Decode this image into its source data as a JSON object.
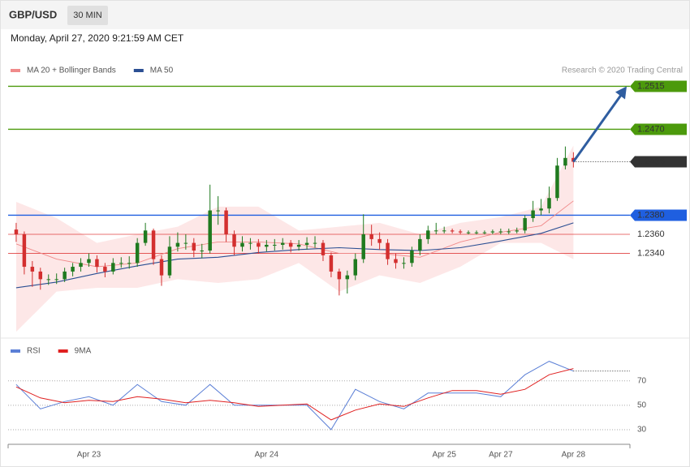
{
  "header": {
    "symbol": "GBP/USD",
    "timeframe": "30 MIN",
    "date": "Monday, April 27, 2020 9:21:59 AM CET"
  },
  "chart_data": [
    {
      "type": "candlestick",
      "credit": "Research © 2020 Trading Central",
      "xlim": [
        -1,
        76
      ],
      "ylim": [
        1.2253,
        1.2529
      ],
      "up_color": "#1f7a1f",
      "down_color": "#d32f2f",
      "open": [
        1.2365,
        1.236,
        1.2326,
        1.2321,
        1.2313,
        1.2313,
        1.2313,
        1.2321,
        1.2326,
        1.233,
        1.2334,
        1.2326,
        1.2321,
        1.233,
        1.233,
        1.233,
        1.2351,
        1.2364,
        1.2334,
        1.2317,
        1.2347,
        1.2351,
        1.2351,
        1.2343,
        1.2343,
        1.2385,
        1.2385,
        1.236,
        1.2347,
        1.2351,
        1.2351,
        1.2347,
        1.2349,
        1.2349,
        1.2351,
        1.2347,
        1.2349,
        1.2351,
        1.2351,
        1.2338,
        1.2321,
        1.2313,
        1.2317,
        1.2334,
        1.236,
        1.2355,
        1.2351,
        1.2334,
        1.233,
        1.233,
        1.2343,
        1.2355,
        1.2364,
        1.2364,
        1.2364,
        1.2363,
        1.2362,
        1.2362,
        1.2362,
        1.2362,
        1.2363,
        1.2363,
        1.2363,
        1.2364,
        1.2377,
        1.2385,
        1.2387,
        1.2398,
        1.2432,
        1.244
      ],
      "high": [
        1.2372,
        1.2363,
        1.2332,
        1.2325,
        1.2318,
        1.2319,
        1.2325,
        1.233,
        1.2335,
        1.234,
        1.2338,
        1.233,
        1.2335,
        1.2336,
        1.2337,
        1.2356,
        1.2372,
        1.2366,
        1.2338,
        1.2358,
        1.2362,
        1.236,
        1.2356,
        1.235,
        1.2412,
        1.24,
        1.2388,
        1.2364,
        1.2358,
        1.2356,
        1.2355,
        1.2354,
        1.2355,
        1.2356,
        1.2354,
        1.2354,
        1.2357,
        1.2358,
        1.2354,
        1.2341,
        1.2324,
        1.2322,
        1.234,
        1.2381,
        1.237,
        1.2362,
        1.2355,
        1.234,
        1.2336,
        1.2347,
        1.236,
        1.2369,
        1.2372,
        1.2368,
        1.2366,
        1.2365,
        1.2364,
        1.2364,
        1.2364,
        1.2365,
        1.2366,
        1.2366,
        1.2367,
        1.238,
        1.2395,
        1.2397,
        1.241,
        1.244,
        1.2452,
        1.2446
      ],
      "low": [
        1.2352,
        1.2318,
        1.2305,
        1.2302,
        1.2307,
        1.2308,
        1.231,
        1.2316,
        1.2321,
        1.2326,
        1.232,
        1.2315,
        1.2318,
        1.2325,
        1.2324,
        1.2326,
        1.2348,
        1.2328,
        1.2306,
        1.2314,
        1.2342,
        1.2344,
        1.2336,
        1.2335,
        1.234,
        1.237,
        1.2352,
        1.2338,
        1.2342,
        1.2344,
        1.234,
        1.2342,
        1.2343,
        1.2344,
        1.2341,
        1.2343,
        1.2344,
        1.2346,
        1.2332,
        1.2315,
        1.2296,
        1.2298,
        1.2312,
        1.233,
        1.2348,
        1.2344,
        1.2328,
        1.2324,
        1.2324,
        1.2326,
        1.2338,
        1.235,
        1.236,
        1.2361,
        1.2361,
        1.236,
        1.236,
        1.236,
        1.236,
        1.236,
        1.236,
        1.236,
        1.2361,
        1.2361,
        1.2373,
        1.238,
        1.2382,
        1.2395,
        1.2428,
        1.243
      ],
      "close": [
        1.236,
        1.2326,
        1.2321,
        1.2313,
        1.2313,
        1.2313,
        1.2321,
        1.2326,
        1.233,
        1.2334,
        1.2326,
        1.2321,
        1.233,
        1.233,
        1.233,
        1.2351,
        1.2364,
        1.2334,
        1.2317,
        1.2347,
        1.2351,
        1.2351,
        1.2343,
        1.2343,
        1.2385,
        1.2385,
        1.236,
        1.2347,
        1.2351,
        1.2351,
        1.2347,
        1.2349,
        1.2349,
        1.2351,
        1.2347,
        1.2349,
        1.2351,
        1.2351,
        1.2338,
        1.2321,
        1.2313,
        1.2317,
        1.2334,
        1.236,
        1.2355,
        1.2351,
        1.2334,
        1.233,
        1.233,
        1.2343,
        1.2355,
        1.2364,
        1.2364,
        1.2364,
        1.2363,
        1.2362,
        1.2362,
        1.2362,
        1.2362,
        1.2363,
        1.2363,
        1.2363,
        1.2364,
        1.2377,
        1.2385,
        1.2387,
        1.2398,
        1.2432,
        1.244,
        1.2436
      ],
      "series": [
        {
          "name": "MA 20 + Bollinger Bands",
          "color": "#f08a8a",
          "band_color": "#fde3e3",
          "x": [
            0,
            5,
            10,
            15,
            20,
            25,
            30,
            35,
            40,
            45,
            50,
            55,
            60,
            65,
            69
          ],
          "values": [
            1.235,
            1.2334,
            1.2326,
            1.233,
            1.2345,
            1.2352,
            1.2352,
            1.235,
            1.234,
            1.234,
            1.2336,
            1.2352,
            1.2362,
            1.2369,
            1.2395
          ],
          "upper": [
            1.2394,
            1.2377,
            1.2351,
            1.236,
            1.2368,
            1.2389,
            1.2389,
            1.2364,
            1.2368,
            1.2372,
            1.236,
            1.2372,
            1.2378,
            1.2389,
            1.2453
          ],
          "lower": [
            1.2258,
            1.23,
            1.2304,
            1.2304,
            1.2313,
            1.2309,
            1.2313,
            1.233,
            1.23,
            1.2317,
            1.2309,
            1.2326,
            1.2351,
            1.2351,
            1.2334
          ]
        },
        {
          "name": "MA 50",
          "color": "#2b4f93",
          "x": [
            0,
            5,
            10,
            15,
            20,
            25,
            30,
            35,
            40,
            45,
            50,
            55,
            60,
            65,
            69
          ],
          "values": [
            1.2304,
            1.231,
            1.2319,
            1.2327,
            1.2334,
            1.2336,
            1.2341,
            1.2344,
            1.2346,
            1.2344,
            1.2343,
            1.2346,
            1.2353,
            1.2361,
            1.2372
          ]
        }
      ],
      "levels": [
        {
          "value": 1.2515,
          "label": "1.2515",
          "color": "#4c9a0c",
          "style": "box"
        },
        {
          "value": 1.247,
          "label": "1.2470",
          "color": "#4c9a0c",
          "style": "box"
        },
        {
          "value": 1.2436,
          "label": "1.2436",
          "color": "#333333",
          "style": "current"
        },
        {
          "value": 1.238,
          "label": "1.2380",
          "color": "#1f5fe0",
          "style": "box"
        },
        {
          "value": 1.236,
          "label": "1.2360",
          "color": "#e04040",
          "style": "text"
        },
        {
          "value": 1.234,
          "label": "1.2340",
          "color": "#e04040",
          "style": "text"
        }
      ],
      "arrow_color": "#2f5da0"
    },
    {
      "type": "line",
      "xlim": [
        -1,
        76
      ],
      "ylim": [
        20,
        103
      ],
      "yticks": [
        70,
        50,
        30
      ],
      "xticks": [
        {
          "value": 9,
          "label": "Apr 23"
        },
        {
          "value": 31,
          "label": "Apr 24"
        },
        {
          "value": 53,
          "label": "Apr 25"
        },
        {
          "value": 60,
          "label": "Apr 27"
        },
        {
          "value": 69,
          "label": "Apr 28"
        }
      ],
      "series": [
        {
          "name": "RSI",
          "color": "#5b7fd6",
          "x": [
            0,
            3,
            6,
            9,
            12,
            15,
            18,
            21,
            24,
            27,
            30,
            33,
            36,
            39,
            42,
            45,
            48,
            51,
            54,
            57,
            60,
            63,
            66,
            69
          ],
          "values": [
            67,
            47,
            53,
            57,
            50,
            67,
            53,
            50,
            67,
            50,
            50,
            50,
            50,
            30,
            63,
            53,
            47,
            60,
            60,
            60,
            57,
            75,
            86,
            78
          ]
        },
        {
          "name": "9MA",
          "color": "#e02020",
          "x": [
            0,
            3,
            6,
            9,
            12,
            15,
            18,
            21,
            24,
            27,
            30,
            33,
            36,
            39,
            42,
            45,
            48,
            51,
            54,
            57,
            60,
            63,
            66,
            69
          ],
          "values": [
            65,
            56,
            52,
            54,
            53,
            57,
            55,
            52,
            54,
            52,
            49,
            50,
            51,
            38,
            46,
            51,
            49,
            56,
            62,
            62,
            59,
            63,
            75,
            80
          ]
        }
      ]
    }
  ]
}
